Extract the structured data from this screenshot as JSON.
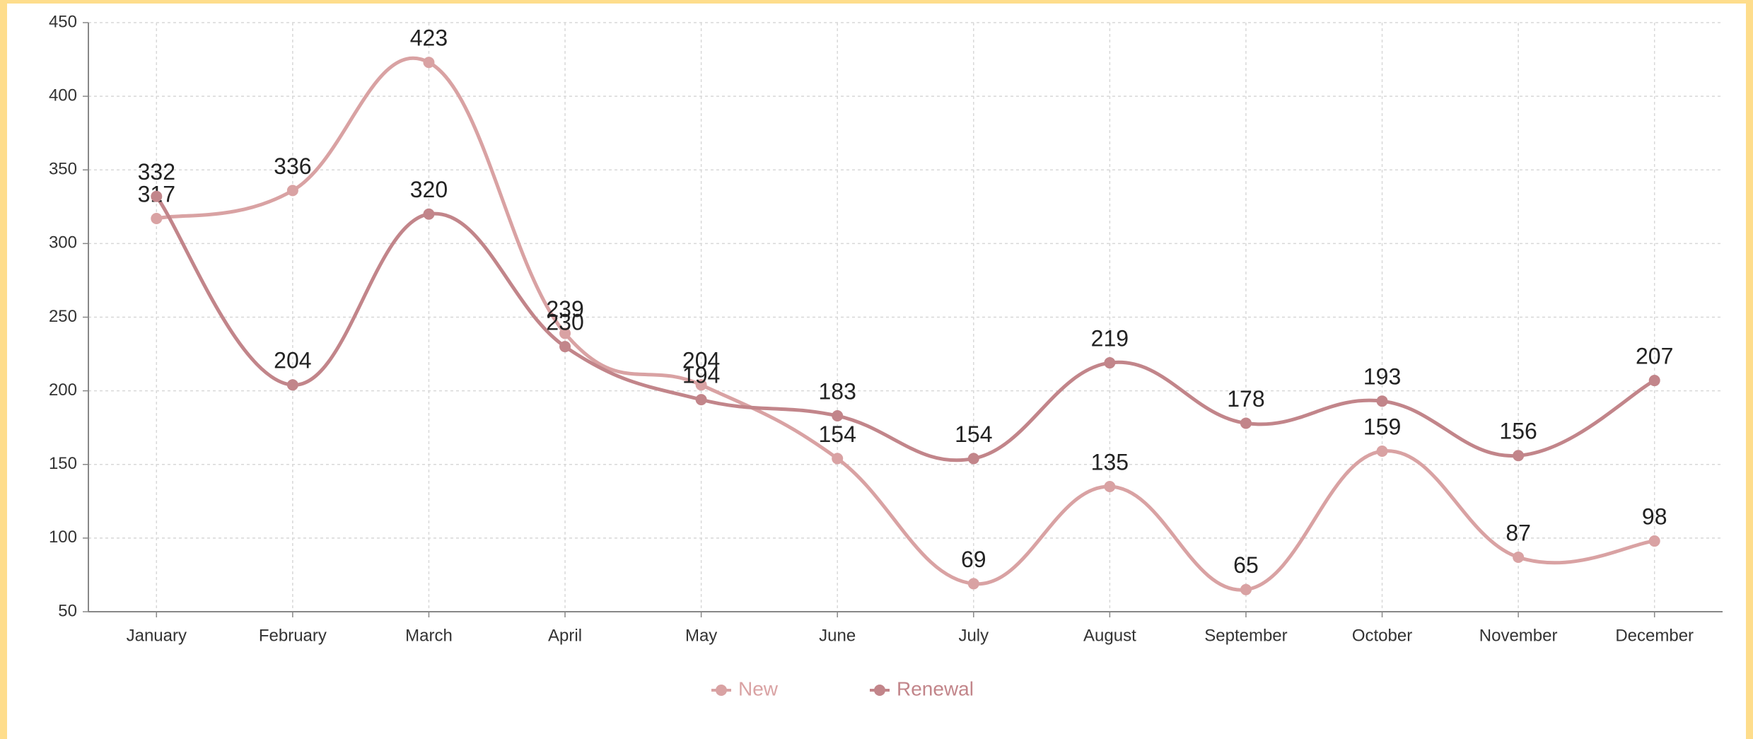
{
  "chart_data": {
    "type": "line",
    "categories": [
      "January",
      "February",
      "March",
      "April",
      "May",
      "June",
      "July",
      "August",
      "September",
      "October",
      "November",
      "December"
    ],
    "series": [
      {
        "name": "New",
        "color": "#d9a2a3",
        "values": [
          317,
          336,
          423,
          239,
          204,
          154,
          69,
          135,
          65,
          159,
          87,
          98
        ]
      },
      {
        "name": "Renewal",
        "color": "#c2858a",
        "values": [
          332,
          204,
          320,
          230,
          194,
          183,
          154,
          219,
          178,
          193,
          156,
          207
        ]
      }
    ],
    "ylim": [
      50,
      450
    ],
    "yticks": [
      50,
      100,
      150,
      200,
      250,
      300,
      350,
      400,
      450
    ],
    "grid": true,
    "legend": "bottom"
  }
}
